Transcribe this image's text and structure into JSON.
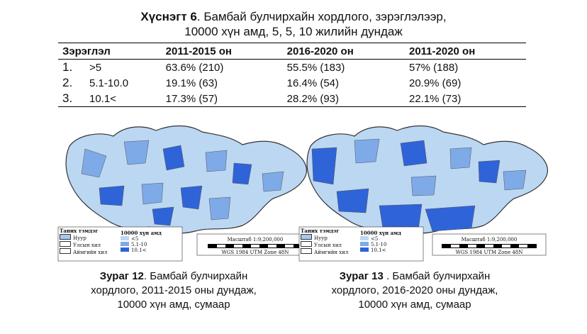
{
  "title": {
    "label": "Хүснэгт 6",
    "line1_rest": ". Бамбай булчирхайн хордлого, зэрэглэлээр,",
    "line2": "10000 хүн амд, 5, 5, 10 жилийн дундаж"
  },
  "table": {
    "headers": [
      "Зэрэглэл",
      "2011-2015 он",
      "2016-2020 он",
      "2011-2020 он"
    ],
    "rows": [
      {
        "num": "1.",
        "grade": ">5",
        "c1": "63.6% (210)",
        "c2": "55.5% (183)",
        "c3": "57% (188)"
      },
      {
        "num": "2.",
        "grade": "5.1-10.0",
        "c1": "19.1% (63)",
        "c2": "16.4% (54)",
        "c3": "20.9% (69)"
      },
      {
        "num": "3.",
        "grade": "10.1<",
        "c1": "17.3% (57)",
        "c2": "28.2% (93)",
        "c3": "22.1% (73)"
      }
    ]
  },
  "legend": {
    "title": "Таних тэмдэг",
    "units": "10000 хүн амд",
    "boundaries": [
      "Нуур",
      "Улсын хил",
      "Аймгийн хил"
    ],
    "classes": [
      "<5",
      "5.1-10",
      "10.1<"
    ],
    "scale_label": "Масштаб 1:9,200,000",
    "projection": "WGS 1984 UTM Zone 48N",
    "scale_unit": "Kilometers",
    "ticks": [
      "0",
      "80",
      "160",
      "320",
      "480",
      "640"
    ]
  },
  "colors": {
    "low": "#bcd7f2",
    "mid": "#7eaae8",
    "high": "#2f63d8",
    "lake": "#a9c8f0"
  },
  "captions": [
    {
      "label": "Зураг 12",
      "text1": ". Бамбай булчирхайн",
      "text2": "хордлого, 2011-2015 оны дундаж,",
      "text3": "10000 хүн амд, сумаар"
    },
    {
      "label": "Зураг 13",
      "text1": " . Бамбай булчирхайн",
      "text2": "хордлого, 2016-2020 оны дундаж,",
      "text3": "10000 хүн амд, сумаар"
    }
  ]
}
